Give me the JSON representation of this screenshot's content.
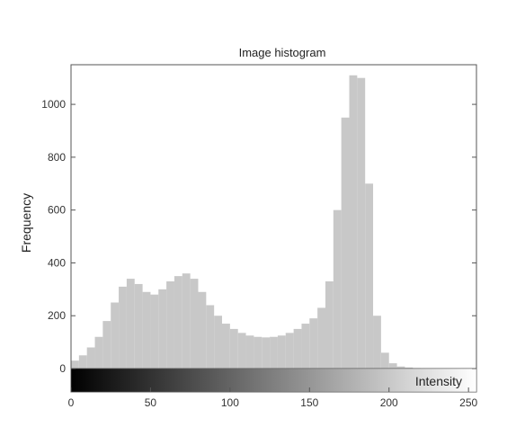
{
  "chart_data": {
    "type": "bar",
    "title": "Image histogram",
    "ylabel": "Frequency",
    "xlabel": "Intensity",
    "xlim": [
      0,
      255
    ],
    "ylim": [
      0,
      1150
    ],
    "grid": false,
    "x_ticks": [
      0,
      50,
      100,
      150,
      200,
      250
    ],
    "y_ticks": [
      0,
      200,
      400,
      600,
      800,
      1000
    ],
    "colorbar": "grayscale 0-255 beneath the axis",
    "bar_color": "#c8c8c8",
    "series": [
      {
        "x_step": 5,
        "x": [
          0,
          5,
          10,
          15,
          20,
          25,
          30,
          35,
          40,
          45,
          50,
          55,
          60,
          65,
          70,
          75,
          80,
          85,
          90,
          95,
          100,
          105,
          110,
          115,
          120,
          125,
          130,
          135,
          140,
          145,
          150,
          155,
          160,
          165,
          170,
          175,
          180,
          185,
          190,
          195,
          200,
          205,
          210,
          215,
          220,
          225,
          230,
          235,
          240,
          245,
          250,
          255
        ],
        "values": [
          30,
          50,
          80,
          120,
          180,
          250,
          310,
          340,
          320,
          290,
          280,
          300,
          330,
          350,
          360,
          340,
          290,
          240,
          200,
          170,
          150,
          135,
          125,
          120,
          118,
          120,
          125,
          135,
          150,
          170,
          190,
          230,
          330,
          600,
          950,
          1110,
          1100,
          700,
          200,
          60,
          20,
          8,
          4,
          2,
          0,
          0,
          0,
          0,
          0,
          0,
          0,
          0
        ]
      }
    ]
  }
}
